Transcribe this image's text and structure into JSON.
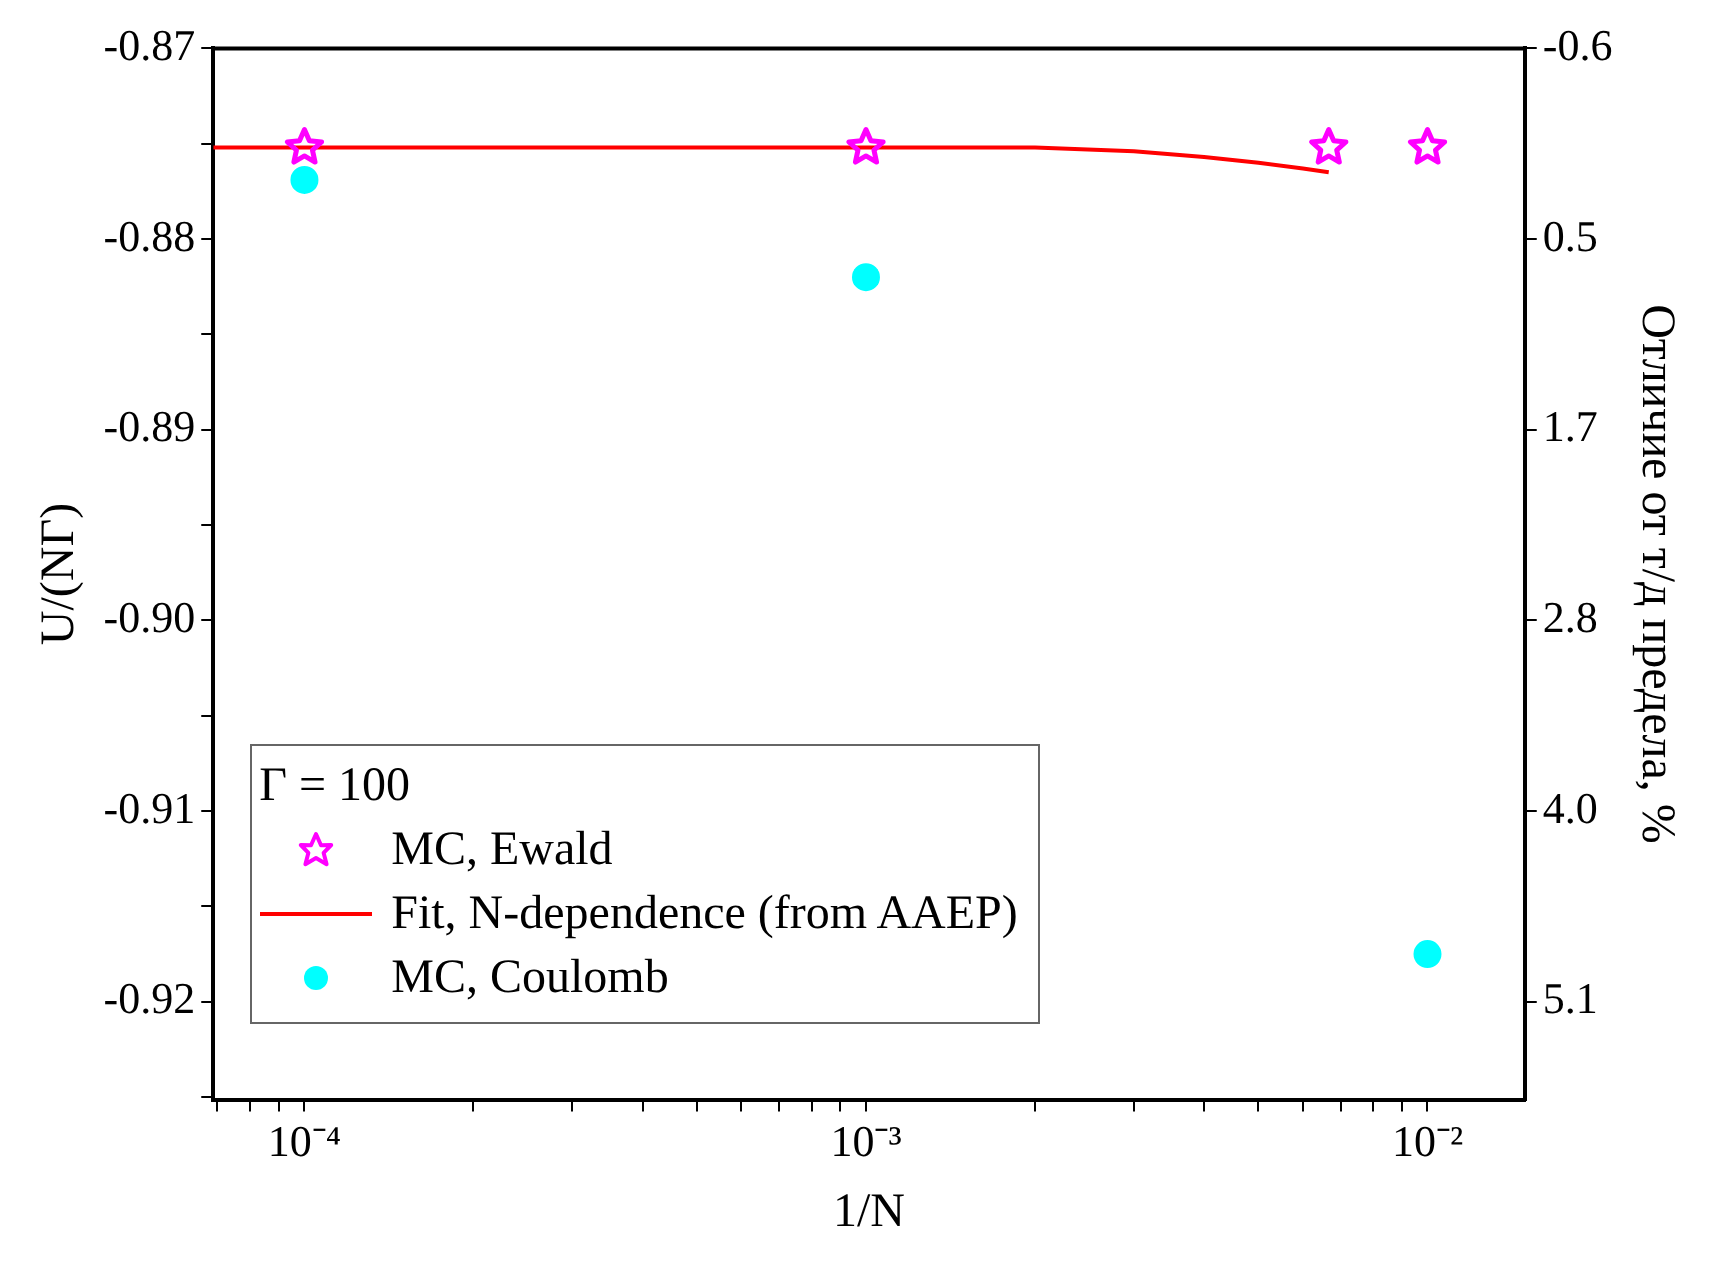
{
  "chart_data": {
    "type": "scatter",
    "xlabel": "1/N",
    "ylabel": "U/(NΓ)",
    "y2label": "Отличие от т/д предела, %",
    "legend_title": "Γ = 100",
    "legend": "bottom left",
    "log": "x",
    "grid": false,
    "xlim": [
      6.88e-05,
      0.0149
    ],
    "xticks": [
      {
        "value": 7e-05,
        "label": null
      },
      {
        "value": 8e-05,
        "label": null
      },
      {
        "value": 9e-05,
        "label": null
      },
      {
        "value": 0.0001,
        "label": "10⁻⁴"
      },
      {
        "value": 0.0002,
        "label": null
      },
      {
        "value": 0.0003,
        "label": null
      },
      {
        "value": 0.0004,
        "label": null
      },
      {
        "value": 0.0005,
        "label": null
      },
      {
        "value": 0.0006,
        "label": null
      },
      {
        "value": 0.0007,
        "label": null
      },
      {
        "value": 0.0008,
        "label": null
      },
      {
        "value": 0.0009,
        "label": null
      },
      {
        "value": 0.001,
        "label": "10⁻³"
      },
      {
        "value": 0.002,
        "label": null
      },
      {
        "value": 0.003,
        "label": null
      },
      {
        "value": 0.004,
        "label": null
      },
      {
        "value": 0.005,
        "label": null
      },
      {
        "value": 0.006,
        "label": null
      },
      {
        "value": 0.007,
        "label": null
      },
      {
        "value": 0.008,
        "label": null
      },
      {
        "value": 0.009,
        "label": null
      },
      {
        "value": 0.01,
        "label": "10⁻²"
      }
    ],
    "ylim": [
      -0.92513,
      -0.87
    ],
    "yticks": [
      {
        "value": -0.925,
        "label": null
      },
      -0.92,
      {
        "value": -0.915,
        "label": null
      },
      -0.91,
      {
        "value": -0.905,
        "label": null
      },
      {
        "value": -0.9,
        "label": "-0.90"
      },
      {
        "value": -0.895,
        "label": null
      },
      -0.89,
      {
        "value": -0.885,
        "label": null
      },
      -0.88,
      {
        "value": -0.875,
        "label": null
      },
      -0.87
    ],
    "y2lim": [
      5.685,
      -0.6
    ],
    "y2ticks": [
      -0.6,
      {
        "value": 0.54,
        "label": "0.5"
      },
      {
        "value": 1.68,
        "label": "1.7"
      },
      {
        "value": 2.82,
        "label": "2.8"
      },
      {
        "value": 3.96,
        "label": "4.0"
      },
      5.1
    ],
    "series": [
      {
        "name": "MC, Ewald",
        "color": "#ff00ff",
        "marker": "star",
        "x": [
          0.0001,
          0.001,
          0.00667,
          0.01
        ],
        "values": [
          -0.8752,
          -0.8752,
          -0.8752,
          -0.8752
        ]
      },
      {
        "name": "Fit, N-dependence (from AAEP)",
        "type": "line",
        "color": "#ff0000",
        "marker": "none",
        "x": [
          6.88e-05,
          0.0001,
          0.0003,
          0.001,
          0.002,
          0.003,
          0.004,
          0.005,
          0.006,
          0.00667
        ],
        "values": [
          -0.8752,
          -0.8752,
          -0.8752,
          -0.8752,
          -0.8752,
          -0.8754,
          -0.8757,
          -0.876,
          -0.8763,
          -0.8765
        ]
      },
      {
        "name": "MC, Coulomb",
        "color": "#00ffff",
        "marker": "circle",
        "x": [
          0.0001,
          0.001,
          0.01
        ],
        "values": [
          -0.8769,
          -0.882,
          -0.9175
        ],
        "errors": [
          0.0002,
          0.0003,
          0.0002
        ]
      }
    ]
  }
}
